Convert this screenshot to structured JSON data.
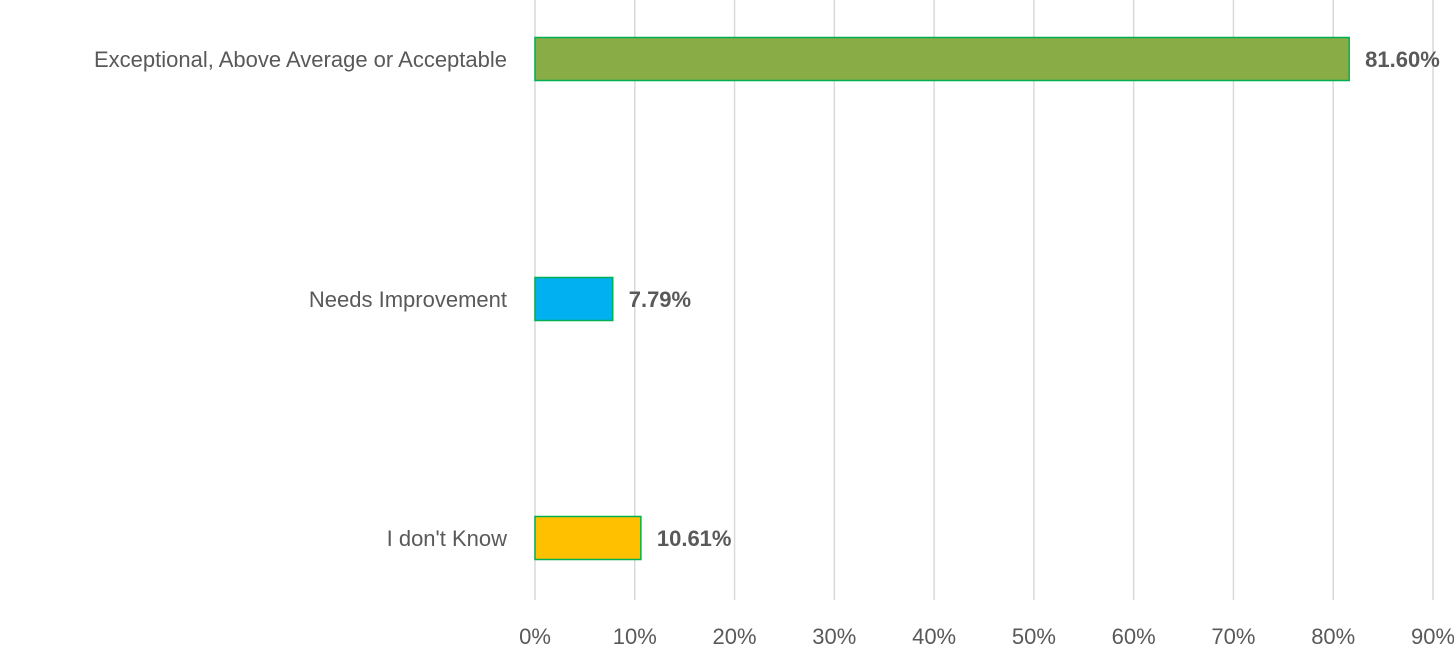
{
  "chart_data": {
    "type": "bar",
    "orientation": "horizontal",
    "title": "",
    "xlabel": "",
    "ylabel": "",
    "categories": [
      "Exceptional, Above Average or Acceptable",
      "Needs Improvement",
      "I don't Know"
    ],
    "values": [
      81.6,
      7.79,
      10.61
    ],
    "value_labels": [
      "81.60%",
      "7.79%",
      "10.61%"
    ],
    "bar_colors": [
      "#8aac46",
      "#00b0f0",
      "#ffc000"
    ],
    "bar_border_color": "#00b050",
    "xlim": [
      0,
      90
    ],
    "x_ticks": [
      0,
      10,
      20,
      30,
      40,
      50,
      60,
      70,
      80,
      90
    ],
    "x_tick_labels": [
      "0%",
      "10%",
      "20%",
      "30%",
      "40%",
      "50%",
      "60%",
      "70%",
      "80%",
      "90%"
    ],
    "grid": true,
    "legend": "none"
  }
}
